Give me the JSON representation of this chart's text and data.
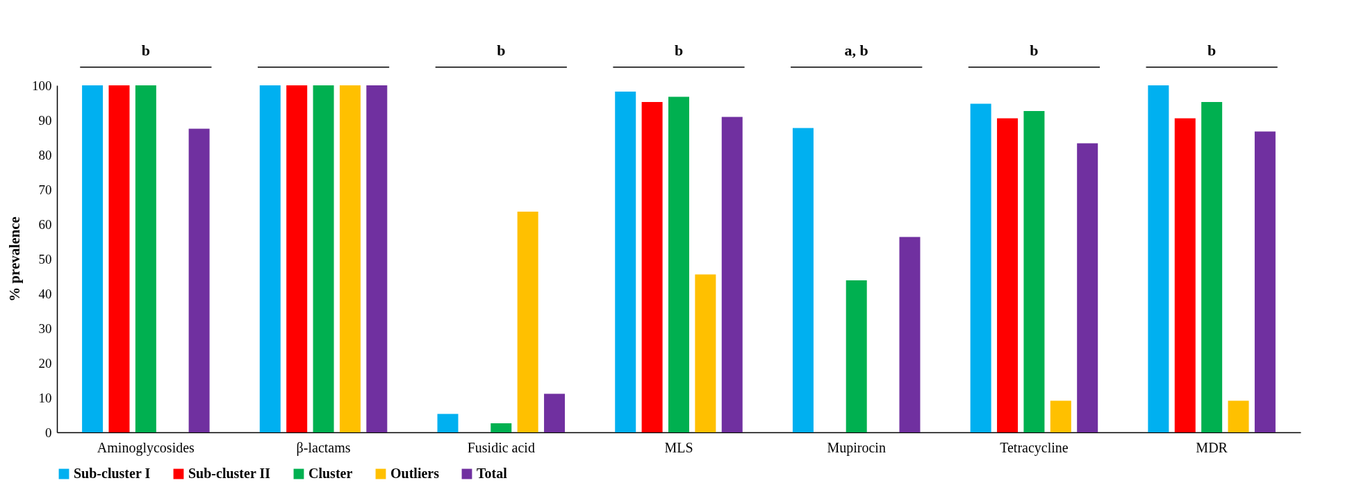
{
  "chart_data": {
    "type": "bar",
    "ylabel": "% prevalence",
    "categories": [
      "Aminoglycosides",
      "β-lactams",
      "Fusidic acid",
      "MLS",
      "Mupirocin",
      "Tetracycline",
      "MDR"
    ],
    "series": [
      {
        "name": "Sub-cluster I",
        "color": "#00b0f0",
        "values": [
          100,
          100,
          5.3,
          98.2,
          87.7,
          94.7,
          100
        ]
      },
      {
        "name": "Sub-cluster II",
        "color": "#ff0000",
        "values": [
          100,
          100,
          0,
          95.2,
          0,
          90.5,
          90.5
        ]
      },
      {
        "name": "Cluster",
        "color": "#00b050",
        "values": [
          100,
          100,
          2.6,
          96.7,
          43.8,
          92.6,
          95.2
        ]
      },
      {
        "name": "Outliers",
        "color": "#ffc000",
        "values": [
          0,
          100,
          63.6,
          45.5,
          0,
          9.1,
          9.1
        ]
      },
      {
        "name": "Total",
        "color": "#7030a0",
        "values": [
          87.5,
          100,
          11.1,
          90.9,
          56.3,
          83.3,
          86.7
        ]
      }
    ],
    "ylim": [
      0,
      100
    ],
    "yticks": [
      0,
      10,
      20,
      30,
      40,
      50,
      60,
      70,
      80,
      90,
      100
    ],
    "grid": false,
    "legend": "bottom",
    "annotations": [
      "b",
      "b",
      "b",
      "a, b",
      "b",
      "b"
    ]
  }
}
